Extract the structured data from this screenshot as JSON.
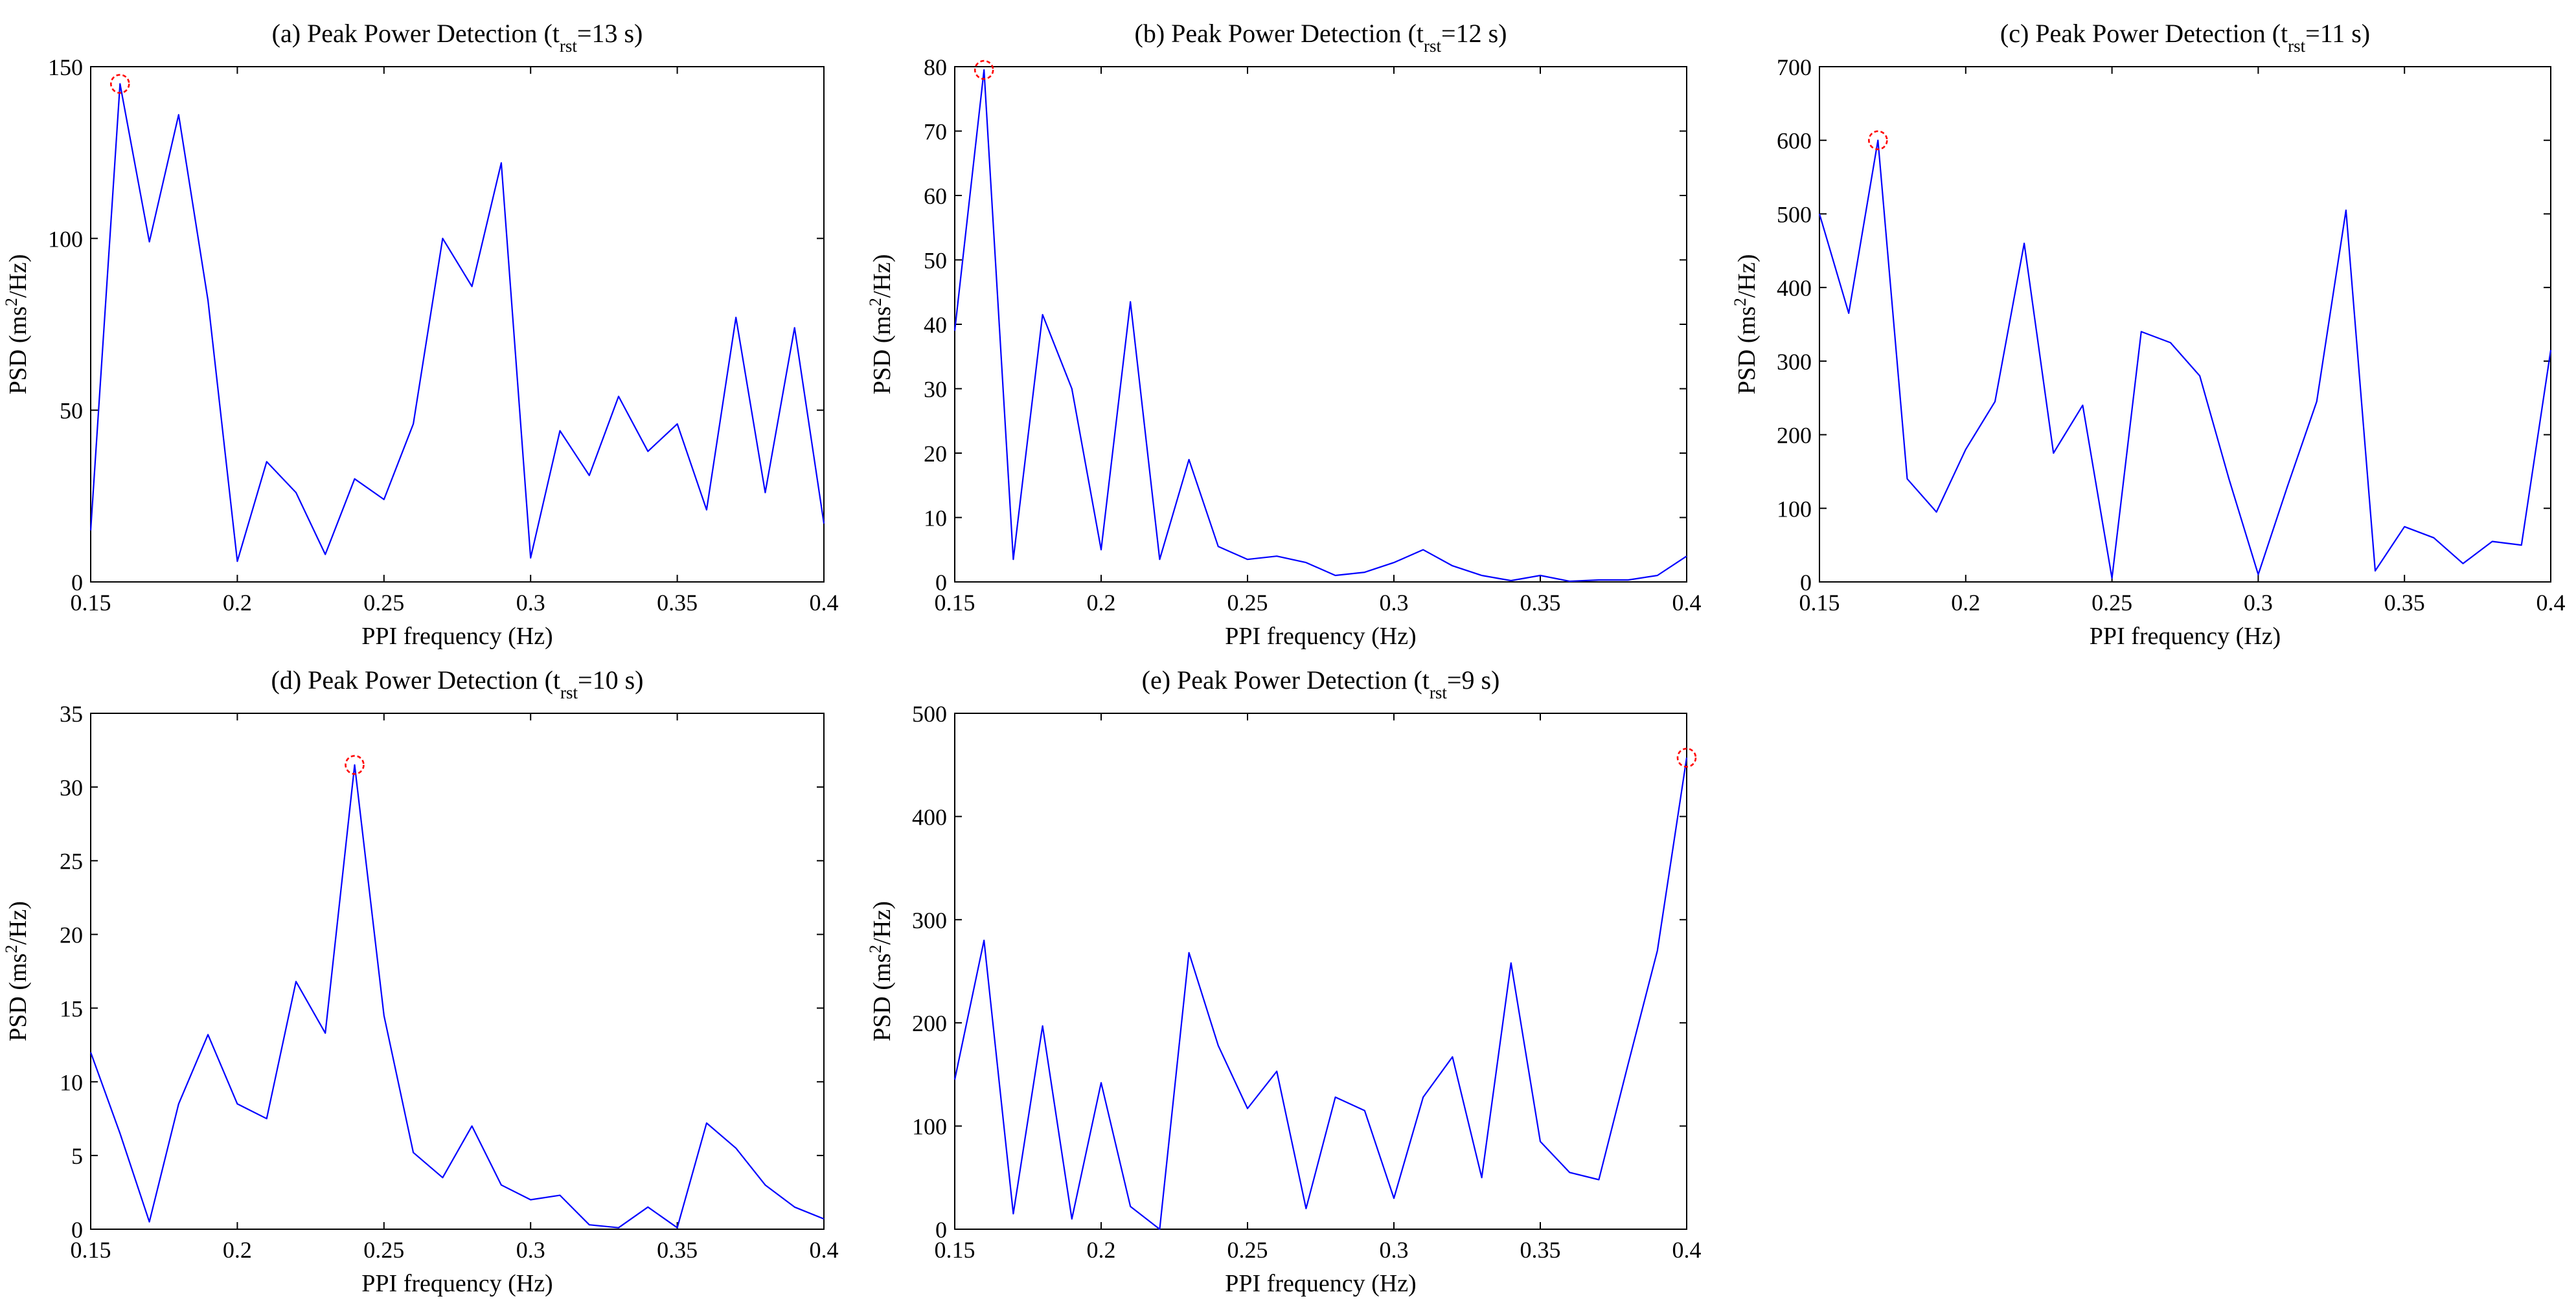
{
  "chart_data": [
    {
      "id": "a",
      "type": "line",
      "title": {
        "prefix": "(a) Peak Power Detection (t",
        "sub": "rst",
        "suffix": "=13 s)"
      },
      "xlabel": "PPI frequency (Hz)",
      "ylabel": {
        "prefix": "PSD (ms",
        "sup": "2",
        "suffix": "/Hz)"
      },
      "xlim": [
        0.15,
        0.4
      ],
      "ylim": [
        0,
        150
      ],
      "xticks": [
        0.15,
        0.2,
        0.25,
        0.3,
        0.35,
        0.4
      ],
      "xtick_labels": [
        "0.15",
        "0.2",
        "0.25",
        "0.3",
        "0.35",
        "0.4"
      ],
      "yticks": [
        0,
        50,
        100,
        150
      ],
      "ytick_labels": [
        "0",
        "50",
        "100",
        "150"
      ],
      "x": [
        0.15,
        0.16,
        0.17,
        0.18,
        0.19,
        0.2,
        0.21,
        0.22,
        0.23,
        0.24,
        0.25,
        0.26,
        0.27,
        0.28,
        0.29,
        0.3,
        0.31,
        0.32,
        0.33,
        0.34,
        0.35,
        0.36,
        0.37,
        0.38,
        0.39,
        0.4
      ],
      "y": [
        15,
        145,
        99,
        136,
        82,
        6,
        35,
        26,
        8,
        30,
        24,
        46,
        100,
        86,
        122,
        7,
        44,
        31,
        54,
        38,
        46,
        21,
        77,
        26,
        74,
        17
      ],
      "peak": {
        "x": 0.16,
        "y": 145
      }
    },
    {
      "id": "b",
      "type": "line",
      "title": {
        "prefix": "(b) Peak Power Detection (t",
        "sub": "rst",
        "suffix": "=12 s)"
      },
      "xlabel": "PPI frequency (Hz)",
      "ylabel": {
        "prefix": "PSD (ms",
        "sup": "2",
        "suffix": "/Hz)"
      },
      "xlim": [
        0.15,
        0.4
      ],
      "ylim": [
        0,
        80
      ],
      "xticks": [
        0.15,
        0.2,
        0.25,
        0.3,
        0.35,
        0.4
      ],
      "xtick_labels": [
        "0.15",
        "0.2",
        "0.25",
        "0.3",
        "0.35",
        "0.4"
      ],
      "yticks": [
        0,
        10,
        20,
        30,
        40,
        50,
        60,
        70,
        80
      ],
      "ytick_labels": [
        "0",
        "10",
        "20",
        "30",
        "40",
        "50",
        "60",
        "70",
        "80"
      ],
      "x": [
        0.15,
        0.16,
        0.17,
        0.18,
        0.19,
        0.2,
        0.21,
        0.22,
        0.23,
        0.24,
        0.25,
        0.26,
        0.27,
        0.28,
        0.29,
        0.3,
        0.31,
        0.32,
        0.33,
        0.34,
        0.35,
        0.36,
        0.37,
        0.38,
        0.39,
        0.4
      ],
      "y": [
        39,
        79.5,
        3.5,
        41.5,
        30,
        5,
        43.5,
        3.5,
        19,
        5.5,
        3.5,
        4,
        3,
        1,
        1.5,
        3,
        5,
        2.5,
        1,
        0.2,
        1,
        0.1,
        0.3,
        0.3,
        1,
        4
      ],
      "peak": {
        "x": 0.16,
        "y": 79.5
      }
    },
    {
      "id": "c",
      "type": "line",
      "title": {
        "prefix": "(c) Peak Power Detection (t",
        "sub": "rst",
        "suffix": "=11 s)"
      },
      "xlabel": "PPI frequency (Hz)",
      "ylabel": {
        "prefix": "PSD (ms",
        "sup": "2",
        "suffix": "/Hz)"
      },
      "xlim": [
        0.15,
        0.4
      ],
      "ylim": [
        0,
        700
      ],
      "xticks": [
        0.15,
        0.2,
        0.25,
        0.3,
        0.35,
        0.4
      ],
      "xtick_labels": [
        "0.15",
        "0.2",
        "0.25",
        "0.3",
        "0.35",
        "0.4"
      ],
      "yticks": [
        0,
        100,
        200,
        300,
        400,
        500,
        600,
        700
      ],
      "ytick_labels": [
        "0",
        "100",
        "200",
        "300",
        "400",
        "500",
        "600",
        "700"
      ],
      "x": [
        0.15,
        0.16,
        0.17,
        0.18,
        0.19,
        0.2,
        0.21,
        0.22,
        0.23,
        0.24,
        0.25,
        0.26,
        0.27,
        0.28,
        0.29,
        0.3,
        0.31,
        0.32,
        0.33,
        0.34,
        0.35,
        0.36,
        0.37,
        0.38,
        0.39,
        0.4
      ],
      "y": [
        500,
        365,
        600,
        140,
        95,
        180,
        245,
        460,
        175,
        240,
        5,
        340,
        325,
        280,
        140,
        10,
        130,
        245,
        505,
        15,
        75,
        60,
        25,
        55,
        50,
        315
      ],
      "peak": {
        "x": 0.17,
        "y": 600
      }
    },
    {
      "id": "d",
      "type": "line",
      "title": {
        "prefix": "(d) Peak Power Detection (t",
        "sub": "rst",
        "suffix": "=10 s)"
      },
      "xlabel": "PPI frequency (Hz)",
      "ylabel": {
        "prefix": "PSD (ms",
        "sup": "2",
        "suffix": "/Hz)"
      },
      "xlim": [
        0.15,
        0.4
      ],
      "ylim": [
        0,
        35
      ],
      "xticks": [
        0.15,
        0.2,
        0.25,
        0.3,
        0.35,
        0.4
      ],
      "xtick_labels": [
        "0.15",
        "0.2",
        "0.25",
        "0.3",
        "0.35",
        "0.4"
      ],
      "yticks": [
        0,
        5,
        10,
        15,
        20,
        25,
        30,
        35
      ],
      "ytick_labels": [
        "0",
        "5",
        "10",
        "15",
        "20",
        "25",
        "30",
        "35"
      ],
      "x": [
        0.15,
        0.16,
        0.17,
        0.18,
        0.19,
        0.2,
        0.21,
        0.22,
        0.23,
        0.24,
        0.25,
        0.26,
        0.27,
        0.28,
        0.29,
        0.3,
        0.31,
        0.32,
        0.33,
        0.34,
        0.35,
        0.36,
        0.37,
        0.38,
        0.39,
        0.4
      ],
      "y": [
        12,
        6.5,
        0.5,
        8.5,
        13.2,
        8.5,
        7.5,
        16.8,
        13.3,
        31.5,
        14.5,
        5.2,
        3.5,
        7,
        3,
        2,
        2.3,
        0.3,
        0.1,
        1.5,
        0.1,
        7.2,
        5.5,
        3,
        1.5,
        0.7
      ],
      "peak": {
        "x": 0.24,
        "y": 31.5
      }
    },
    {
      "id": "e",
      "type": "line",
      "title": {
        "prefix": "(e) Peak Power Detection (t",
        "sub": "rst",
        "suffix": "=9 s)"
      },
      "xlabel": "PPI frequency (Hz)",
      "ylabel": {
        "prefix": "PSD (ms",
        "sup": "2",
        "suffix": "/Hz)"
      },
      "xlim": [
        0.15,
        0.4
      ],
      "ylim": [
        0,
        500
      ],
      "xticks": [
        0.15,
        0.2,
        0.25,
        0.3,
        0.35,
        0.4
      ],
      "xtick_labels": [
        "0.15",
        "0.2",
        "0.25",
        "0.3",
        "0.35",
        "0.4"
      ],
      "yticks": [
        0,
        100,
        200,
        300,
        400,
        500
      ],
      "ytick_labels": [
        "0",
        "100",
        "200",
        "300",
        "400",
        "500"
      ],
      "x": [
        0.15,
        0.16,
        0.17,
        0.18,
        0.19,
        0.2,
        0.21,
        0.22,
        0.23,
        0.24,
        0.25,
        0.26,
        0.27,
        0.28,
        0.29,
        0.3,
        0.31,
        0.32,
        0.33,
        0.34,
        0.35,
        0.36,
        0.37,
        0.38,
        0.39,
        0.4
      ],
      "y": [
        145,
        280,
        15,
        197,
        10,
        142,
        22,
        0,
        268,
        178,
        117,
        153,
        20,
        128,
        115,
        30,
        128,
        167,
        50,
        258,
        85,
        55,
        48,
        160,
        270,
        457
      ],
      "peak": {
        "x": 0.4,
        "y": 457
      }
    }
  ],
  "colors": {
    "series": "#0000ff",
    "peak_marker": "#ff0000",
    "axes": "#000000"
  }
}
